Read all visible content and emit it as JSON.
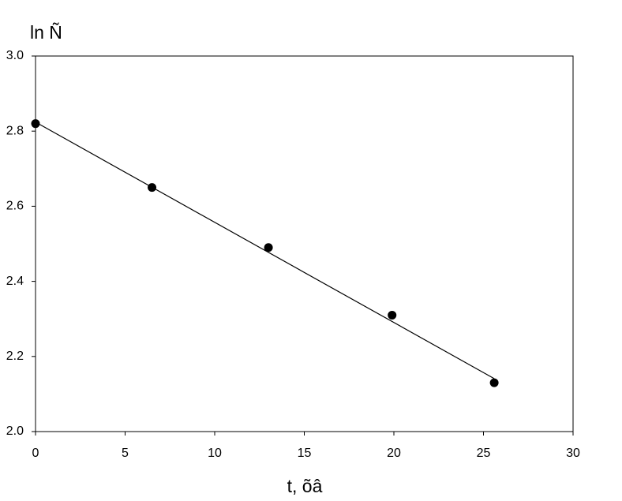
{
  "chart_data": {
    "type": "scatter",
    "y_label": "ln Ñ",
    "x_label": "t, õâ",
    "series": [
      {
        "x": [
          0,
          6.5,
          13,
          19.9,
          25.6
        ],
        "values": [
          2.82,
          2.65,
          2.49,
          2.31,
          2.13
        ],
        "color": "#000000"
      }
    ],
    "trendline": {
      "x": [
        0,
        25.6
      ],
      "values": [
        2.824,
        2.141
      ],
      "color": "#000000"
    },
    "xlim": [
      0,
      30
    ],
    "xticks": [
      0,
      5,
      10,
      15,
      20,
      25,
      30
    ],
    "ylim": [
      2.0,
      3.0
    ],
    "yticks": [
      {
        "value": 2.0,
        "label": "2.0"
      },
      2.2,
      2.4,
      2.6,
      2.8,
      {
        "value": 3.0,
        "label": "3.0"
      }
    ],
    "grid": false
  }
}
